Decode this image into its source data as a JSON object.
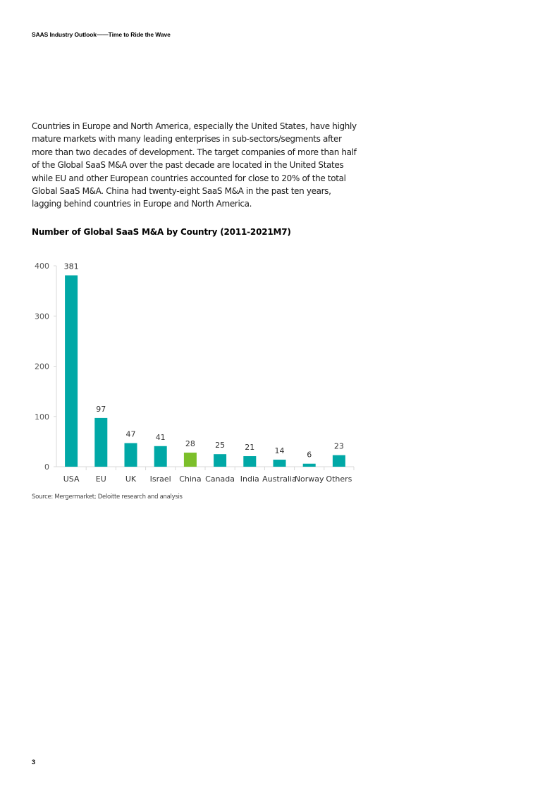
{
  "header": {
    "title": "SAAS Industry Outlook——Time to Ride the Wave"
  },
  "body": {
    "paragraph": "Countries in Europe and North America, especially the United States, have highly mature markets with many leading enterprises in sub-sectors/segments after more than two decades of development. The target companies of more than half of the Global SaaS M&A over the past decade are located in the United States while EU and other European countries accounted for close to 20% of the total Global SaaS M&A. China had twenty-eight SaaS M&A in the past ten years, lagging behind countries in Europe and North America."
  },
  "chart_data": {
    "type": "bar",
    "title": "Number of Global SaaS M&A by Country (2011-2021M7)",
    "categories": [
      "USA",
      "EU",
      "UK",
      "Israel",
      "China",
      "Canada",
      "India",
      "Australia",
      "Norway",
      "Others"
    ],
    "values": [
      381,
      97,
      47,
      41,
      28,
      25,
      21,
      14,
      6,
      23
    ],
    "colors": [
      "#00a8a6",
      "#00a8a6",
      "#00a8a6",
      "#00a8a6",
      "#7cbf2a",
      "#00a8a6",
      "#00a8a6",
      "#00a8a6",
      "#00a8a6",
      "#00a8a6"
    ],
    "highlight": "China",
    "xlabel": "",
    "ylabel": "",
    "ylim": [
      0,
      400
    ],
    "yticks": [
      0,
      100,
      200,
      300,
      400
    ],
    "grid": false,
    "data_labels": true,
    "legend": null
  },
  "source": {
    "text": "Source: Mergermarket; Deloitte research and analysis"
  },
  "footer": {
    "page_number": "3"
  },
  "colors": {
    "bar_primary": "#00a8a6",
    "bar_highlight": "#7cbf2a",
    "axis": "#d9d9d9"
  }
}
